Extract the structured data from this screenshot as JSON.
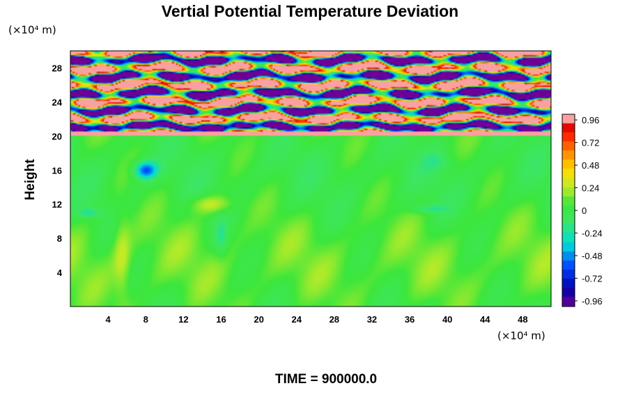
{
  "chart_data": {
    "type": "heatmap",
    "title": "Vertial Potential Temperature Deviation",
    "ylabel": "Height",
    "x_unit": "(×10⁴ m)",
    "y_unit": "(×10⁴ m)",
    "x_ticks": [
      4,
      8,
      12,
      16,
      20,
      24,
      28,
      32,
      36,
      40,
      44,
      48
    ],
    "y_ticks": [
      4,
      8,
      12,
      16,
      20,
      24,
      28
    ],
    "xlim": [
      0,
      51
    ],
    "ylim": [
      0,
      30
    ],
    "colorbar": {
      "min": -1.02,
      "max": 1.02,
      "tick_values": [
        0.96,
        0.72,
        0.48,
        0.24,
        0,
        -0.24,
        -0.48,
        -0.72,
        -0.96
      ],
      "tick_labels": [
        "0.96",
        "0.72",
        "0.48",
        "0.24",
        "0",
        "-0.24",
        "-0.48",
        "-0.72",
        "-0.96"
      ]
    },
    "footer": "TIME = 900000.0",
    "features": {
      "upper_layer_y_range": [
        20,
        30
      ],
      "lower_background_value": 0.05,
      "cold_blob": {
        "x": 8,
        "y": 16,
        "value": -0.6
      },
      "warm_band": {
        "x": 15,
        "y": 12,
        "value": 0.3
      }
    }
  }
}
